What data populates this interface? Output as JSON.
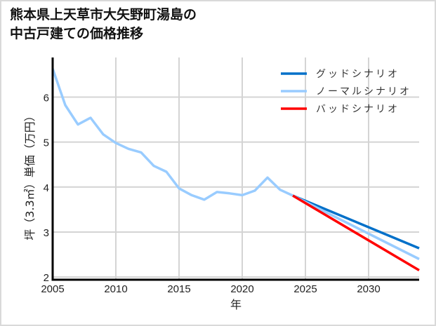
{
  "title_lines": [
    "熊本県上天草市大矢野町湯島の",
    "中古戸建ての価格推移"
  ],
  "chart_data": {
    "type": "line",
    "title": "熊本県上天草市大矢野町湯島の中古戸建ての価格推移",
    "xlabel": "年",
    "ylabel": "坪（3.3㎡）単価（万円）",
    "xlim": [
      2005,
      2034
    ],
    "ylim": [
      1.94,
      6.88
    ],
    "xticks": [
      2005,
      2010,
      2015,
      2020,
      2025,
      2030
    ],
    "yticks": [
      2,
      3,
      4,
      5,
      6
    ],
    "grid": true,
    "legend_position": "upper right",
    "series": [
      {
        "name": "ノーマルシナリオ",
        "role": "historical",
        "color": "#99ccff",
        "x": [
          2005,
          2006,
          2007,
          2008,
          2009,
          2010,
          2011,
          2012,
          2013,
          2014,
          2015,
          2016,
          2017,
          2018,
          2019,
          2020,
          2021,
          2022,
          2023,
          2024
        ],
        "values": [
          6.63,
          5.82,
          5.39,
          5.54,
          5.17,
          4.98,
          4.85,
          4.77,
          4.47,
          4.34,
          3.97,
          3.82,
          3.72,
          3.89,
          3.86,
          3.82,
          3.92,
          4.21,
          3.94,
          3.81
        ]
      },
      {
        "name": "グッドシナリオ",
        "color": "#0070c9",
        "x": [
          2024,
          2034
        ],
        "values": [
          3.81,
          2.64
        ]
      },
      {
        "name": "ノーマルシナリオ",
        "color": "#99ccff",
        "x": [
          2024,
          2034
        ],
        "values": [
          3.81,
          2.4
        ]
      },
      {
        "name": "バッドシナリオ",
        "color": "#ff0000",
        "x": [
          2024,
          2034
        ],
        "values": [
          3.81,
          2.15
        ]
      }
    ],
    "legend": [
      {
        "label": "グッドシナリオ",
        "color": "#0070c9"
      },
      {
        "label": "ノーマルシナリオ",
        "color": "#99ccff"
      },
      {
        "label": "バッドシナリオ",
        "color": "#ff0000"
      }
    ]
  }
}
